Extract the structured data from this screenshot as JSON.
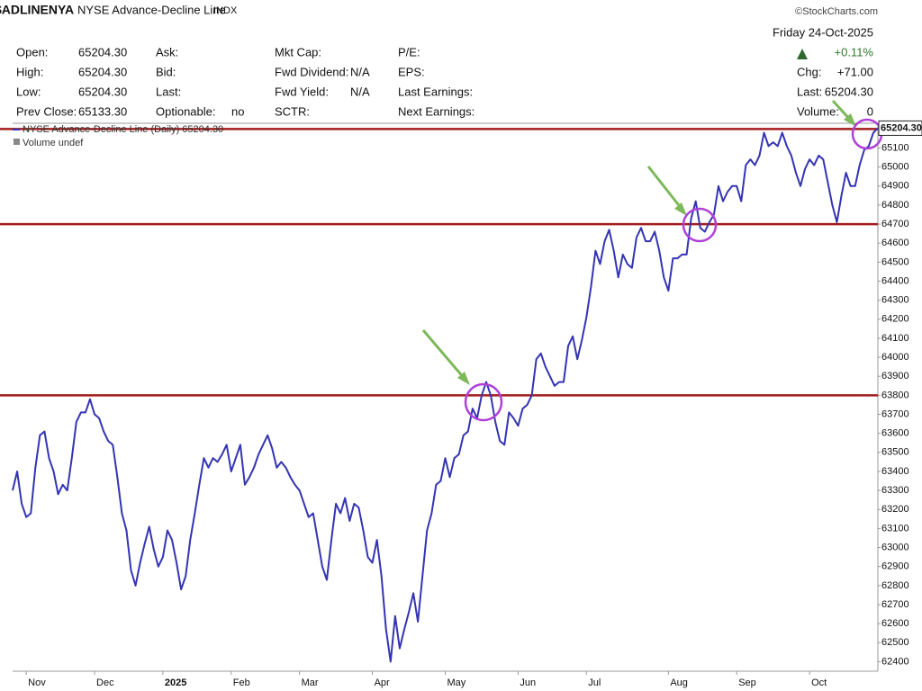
{
  "header": {
    "symbol": "$ADLINENYA",
    "name": "NYSE Advance-Decline Line",
    "exchange": "INDX",
    "source": "©StockCharts.com"
  },
  "quote": {
    "columns": [
      [
        [
          "Open:",
          "65204.30"
        ],
        [
          "High:",
          "65204.30"
        ],
        [
          "Low:",
          "65204.30"
        ],
        [
          "Prev Close:",
          "65133.30"
        ]
      ],
      [
        [
          "Ask:"
        ],
        [
          "Bid:"
        ],
        [
          "Last:"
        ],
        [
          "Optionable:",
          "no"
        ]
      ],
      [
        [
          "Mkt Cap:"
        ],
        [
          "Fwd Dividend:",
          "N/A"
        ],
        [
          "Fwd Yield:",
          "N/A"
        ],
        [
          "SCTR:"
        ]
      ],
      [
        [
          "P/E:"
        ],
        [
          "EPS:"
        ],
        [
          "Last Earnings:"
        ],
        [
          "Next Earnings:"
        ]
      ]
    ]
  },
  "summary": {
    "date": "Friday 24-Oct-2025",
    "change_pct": "+0.11%",
    "chg_label": "Chg:",
    "chg": "+71.00",
    "last_label": "Last:",
    "last": "65204.30",
    "volume_label": "Volume:",
    "volume": "0"
  },
  "chart_data": {
    "type": "line",
    "categories": [
      null,
      null,
      null,
      "Nov",
      null,
      null,
      null,
      null,
      null,
      null,
      null,
      null,
      null,
      null,
      null,
      null,
      null,
      null,
      "Dec",
      null,
      null,
      null,
      null,
      null,
      null,
      null,
      null,
      null,
      null,
      null,
      null,
      null,
      null,
      "2025",
      null,
      null,
      null,
      null,
      null,
      null,
      null,
      null,
      null,
      null,
      null,
      null,
      null,
      null,
      "Feb",
      null,
      null,
      null,
      null,
      null,
      null,
      null,
      null,
      null,
      null,
      null,
      null,
      null,
      null,
      "Mar",
      null,
      null,
      null,
      null,
      null,
      null,
      null,
      null,
      null,
      null,
      null,
      null,
      null,
      null,
      null,
      "Apr",
      null,
      null,
      null,
      null,
      null,
      null,
      null,
      null,
      null,
      null,
      null,
      null,
      null,
      null,
      null,
      "May",
      null,
      null,
      null,
      null,
      null,
      null,
      null,
      null,
      null,
      null,
      null,
      null,
      null,
      null,
      null,
      "Jun",
      null,
      null,
      null,
      null,
      null,
      null,
      null,
      null,
      null,
      null,
      null,
      null,
      null,
      null,
      "Jul",
      null,
      null,
      null,
      null,
      null,
      null,
      null,
      null,
      null,
      null,
      null,
      null,
      null,
      null,
      null,
      null,
      null,
      "Aug",
      null,
      null,
      null,
      null,
      null,
      null,
      null,
      null,
      null,
      null,
      null,
      null,
      null,
      null,
      "Sep",
      null,
      null,
      null,
      null,
      null,
      null,
      null,
      null,
      null,
      null,
      null,
      null,
      null,
      null,
      null,
      "Oct",
      null,
      null,
      null,
      null,
      null,
      null,
      null,
      null,
      null,
      null,
      null,
      null,
      null,
      null,
      null
    ],
    "series": [
      {
        "name": "NYSE Advance-Decline Line (Daily) 65204.30",
        "color": "#3434b4",
        "values": [
          63300,
          63400,
          63230,
          63160,
          63180,
          63420,
          63590,
          63610,
          63470,
          63400,
          63280,
          63330,
          63300,
          63470,
          63660,
          63710,
          63710,
          63780,
          63700,
          63680,
          63610,
          63560,
          63540,
          63370,
          63180,
          63090,
          62880,
          62800,
          62920,
          63020,
          63110,
          62990,
          62900,
          62950,
          63090,
          63040,
          62920,
          62780,
          62850,
          63040,
          63180,
          63330,
          63470,
          63420,
          63470,
          63450,
          63490,
          63540,
          63400,
          63470,
          63540,
          63330,
          63370,
          63420,
          63490,
          63540,
          63590,
          63520,
          63420,
          63450,
          63420,
          63370,
          63330,
          63300,
          63230,
          63160,
          63180,
          63040,
          62900,
          62830,
          63040,
          63230,
          63180,
          63260,
          63140,
          63230,
          63210,
          63090,
          62950,
          62920,
          63040,
          62850,
          62570,
          62400,
          62640,
          62470,
          62570,
          62660,
          62760,
          62610,
          62850,
          63090,
          63180,
          63330,
          63350,
          63470,
          63370,
          63470,
          63490,
          63590,
          63610,
          63730,
          63680,
          63800,
          63870,
          63800,
          63660,
          63560,
          63540,
          63710,
          63680,
          63640,
          63730,
          63750,
          63800,
          63990,
          64020,
          63950,
          63900,
          63850,
          63870,
          63870,
          64060,
          64110,
          63990,
          64090,
          64210,
          64370,
          64560,
          64490,
          64610,
          64670,
          64560,
          64420,
          64540,
          64490,
          64470,
          64630,
          64680,
          64610,
          64610,
          64660,
          64560,
          64420,
          64350,
          64520,
          64520,
          64540,
          64540,
          64730,
          64820,
          64680,
          64660,
          64710,
          64750,
          64900,
          64820,
          64870,
          64900,
          64900,
          64820,
          65010,
          65040,
          65010,
          65060,
          65180,
          65110,
          65130,
          65110,
          65180,
          65110,
          65060,
          64970,
          64900,
          64990,
          65040,
          65010,
          65060,
          65040,
          64920,
          64800,
          64710,
          64850,
          64970,
          64900,
          64900,
          65010,
          65090,
          65110,
          65180,
          65204.3
        ]
      }
    ],
    "ylim": [
      62350,
      65230
    ],
    "yticks": [
      62400,
      62500,
      62600,
      62700,
      62800,
      62900,
      63000,
      63100,
      63200,
      63300,
      63400,
      63500,
      63600,
      63700,
      63800,
      63900,
      64000,
      64100,
      64200,
      64300,
      64400,
      64500,
      64600,
      64700,
      64800,
      64900,
      65000,
      65100
    ],
    "reference_lines": {
      "values": [
        65200,
        64700,
        63800
      ],
      "color": "#a51c1c"
    },
    "price_tag": "65204.30",
    "volume_legend": "Volume undef"
  }
}
